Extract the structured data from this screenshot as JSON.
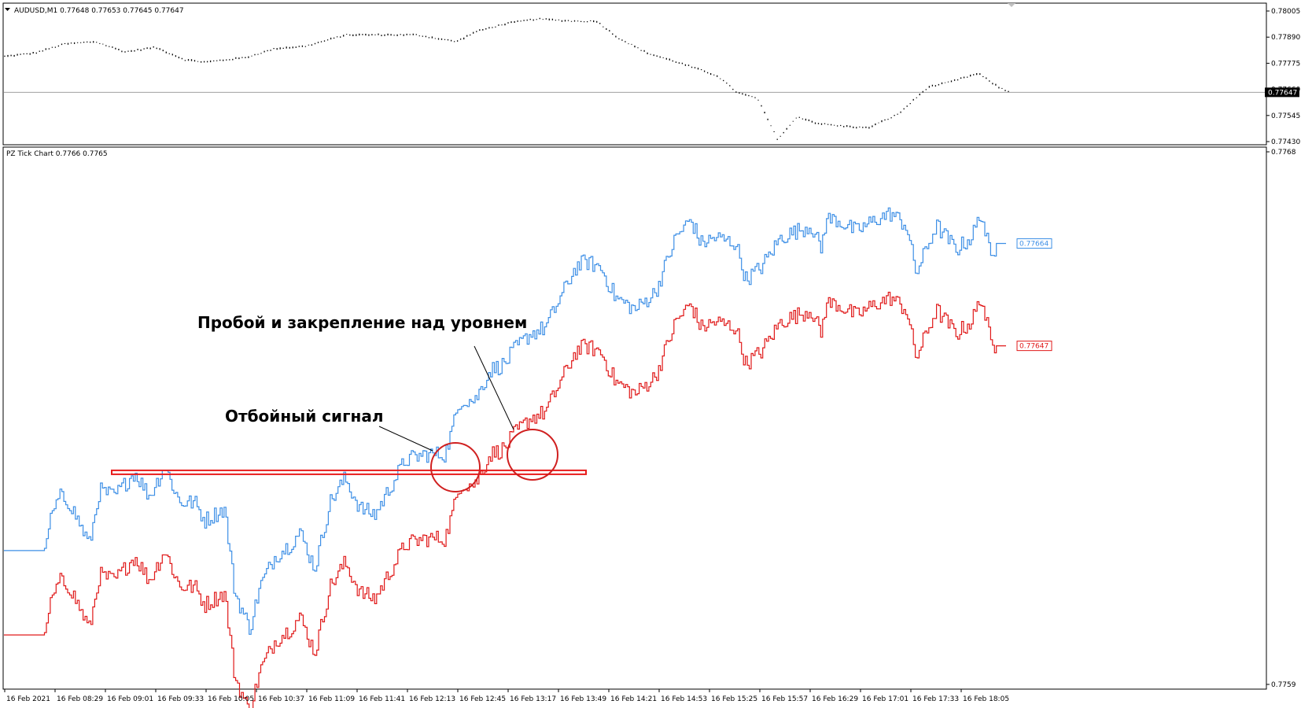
{
  "window": {
    "top_title": "AUDUSD,M1  0.77648 0.77653 0.77645 0.77647",
    "bottom_title": "PZ Tick Chart 0.7766 0.7765"
  },
  "colors": {
    "blue": "#3d8fe6",
    "red": "#e01818",
    "level": "#e81c1c",
    "price_line": "#a0a0a0",
    "axis": "#000000",
    "annotation": "#d02020"
  },
  "annotations": {
    "breakout": "Пробой и закрепление над уровнем",
    "rebound": "Отбойный сигнал"
  },
  "chart_data": [
    {
      "type": "line",
      "name": "top-pane",
      "title": "AUDUSD,M1  0.77648 0.77653 0.77645 0.77647",
      "ylim": [
        0.7743,
        0.78005
      ],
      "y_ticks": [
        "0.78005",
        "0.77890",
        "0.77775",
        "0.77660",
        "0.77545",
        "0.77430"
      ],
      "current_price": "0.77647",
      "current_value": 0.77647,
      "series": [
        {
          "name": "",
          "x": [
            0,
            3,
            6,
            9,
            12,
            15,
            18,
            20,
            24,
            27,
            30,
            34,
            37,
            41,
            45,
            47,
            50,
            53,
            57,
            59,
            61,
            64,
            67,
            71,
            73,
            75,
            77,
            79,
            81,
            83,
            86,
            89,
            92,
            94,
            97,
            99,
            100
          ],
          "values": [
            0.77805,
            0.7782,
            0.7786,
            0.7787,
            0.77825,
            0.77845,
            0.7779,
            0.7778,
            0.778,
            0.7784,
            0.7785,
            0.779,
            0.779,
            0.779,
            0.7787,
            0.77915,
            0.7795,
            0.7797,
            0.7796,
            0.7796,
            0.7789,
            0.7782,
            0.7778,
            0.7772,
            0.77645,
            0.7762,
            0.7744,
            0.7754,
            0.7751,
            0.775,
            0.7749,
            0.7755,
            0.7767,
            0.7769,
            0.7773,
            0.7767,
            0.7765
          ]
        }
      ]
    },
    {
      "type": "line",
      "name": "bottom-pane",
      "title": "PZ Tick Chart 0.7766 0.7765",
      "ylim": [
        0.7759,
        0.7768
      ],
      "y_ticks": [
        "0.7768",
        "0.7759"
      ],
      "x_tick_labels": [
        "16 Feb 2021",
        "16 Feb 08:29",
        "16 Feb 09:01",
        "16 Feb 09:33",
        "16 Feb 10:05",
        "16 Feb 10:37",
        "16 Feb 11:09",
        "16 Feb 11:41",
        "16 Feb 12:13",
        "16 Feb 12:45",
        "16 Feb 13:17",
        "16 Feb 13:49",
        "16 Feb 14:21",
        "16 Feb 14:53",
        "16 Feb 15:25",
        "16 Feb 15:57",
        "16 Feb 16:29",
        "16 Feb 17:01",
        "16 Feb 17:33",
        "16 Feb 18:05"
      ],
      "level": 0.77626,
      "series": [
        {
          "name": "",
          "color": "blue",
          "label": "0.77664",
          "x": [
            0,
            4,
            4.6,
            5.5,
            6.5,
            8.5,
            9.5,
            11,
            13,
            14.5,
            16,
            17.5,
            19,
            20,
            22,
            23,
            24.5,
            25.5,
            27,
            28.5,
            29.5,
            31,
            32.5,
            34,
            35.5,
            37,
            38,
            40,
            42,
            44,
            45.5,
            46,
            47,
            48.5,
            50,
            50.7,
            52.5,
            54,
            55.5,
            57,
            58,
            59.5,
            61,
            63,
            65,
            67,
            68.5,
            69.5,
            71,
            73,
            74,
            75.5,
            77.5,
            79,
            80.5,
            81.5,
            82,
            83,
            85,
            87,
            88.5,
            90,
            91,
            93,
            95,
            96.5,
            97.5,
            98.5,
            99,
            99.8
          ],
          "values": [
            0.77613,
            0.77613,
            0.77618,
            0.77622,
            0.77621,
            0.77614,
            0.77623,
            0.77622,
            0.77626,
            0.77622,
            0.77627,
            0.77621,
            0.77621,
            0.77618,
            0.7762,
            0.77606,
            0.776,
            0.77607,
            0.77612,
            0.77614,
            0.77616,
            0.7761,
            0.77621,
            0.77625,
            0.7762,
            0.77619,
            0.77622,
            0.77628,
            0.77629,
            0.77629,
            0.77638,
            0.77638,
            0.77638,
            0.77643,
            0.77644,
            0.77646,
            0.77649,
            0.7765,
            0.77655,
            0.7766,
            0.77661,
            0.7766,
            0.77655,
            0.77653,
            0.77656,
            0.77665,
            0.77668,
            0.77664,
            0.77665,
            0.77664,
            0.77658,
            0.7766,
            0.77665,
            0.77666,
            0.77667,
            0.77663,
            0.77668,
            0.77668,
            0.77666,
            0.77668,
            0.77669,
            0.77667,
            0.77659,
            0.77667,
            0.77663,
            0.77665,
            0.77669,
            0.77661,
            0.77664,
            0.77664
          ]
        },
        {
          "name": "",
          "color": "red",
          "label": "0.77647",
          "x": [
            0,
            4,
            4.6,
            5.5,
            6.5,
            8.5,
            9.5,
            11,
            13,
            14.5,
            16,
            17.5,
            19,
            20,
            22,
            23,
            24.5,
            25.5,
            27,
            28.5,
            29.5,
            31,
            32.5,
            34,
            35.5,
            37,
            38,
            40,
            42,
            44,
            45.5,
            46,
            47,
            48.5,
            50,
            50.7,
            52.5,
            54,
            55.5,
            57,
            58,
            59.5,
            61,
            63,
            65,
            67,
            68.5,
            69.5,
            71,
            73,
            74,
            75.5,
            77.5,
            79,
            80.5,
            81.5,
            82,
            83,
            85,
            87,
            88.5,
            90,
            91,
            93,
            95,
            96.5,
            97.5,
            98.5,
            99,
            99.8
          ],
          "values": [
            0.77599,
            0.77599,
            0.77604,
            0.77608,
            0.77607,
            0.776,
            0.77609,
            0.77608,
            0.77612,
            0.77608,
            0.77613,
            0.77607,
            0.77607,
            0.77604,
            0.77606,
            0.77592,
            0.77586,
            0.77593,
            0.77598,
            0.776,
            0.77602,
            0.77596,
            0.77607,
            0.77611,
            0.77606,
            0.77605,
            0.77608,
            0.77614,
            0.77615,
            0.77615,
            0.77624,
            0.77624,
            0.77624,
            0.77629,
            0.7763,
            0.77632,
            0.77635,
            0.77636,
            0.77641,
            0.77646,
            0.77647,
            0.77646,
            0.77641,
            0.77639,
            0.77642,
            0.77651,
            0.77654,
            0.7765,
            0.77651,
            0.7765,
            0.77644,
            0.77646,
            0.77651,
            0.77652,
            0.77653,
            0.77649,
            0.77654,
            0.77654,
            0.77652,
            0.77654,
            0.77655,
            0.77653,
            0.77645,
            0.77653,
            0.77649,
            0.77651,
            0.77655,
            0.77647,
            0.77647,
            0.77647
          ]
        }
      ]
    }
  ]
}
